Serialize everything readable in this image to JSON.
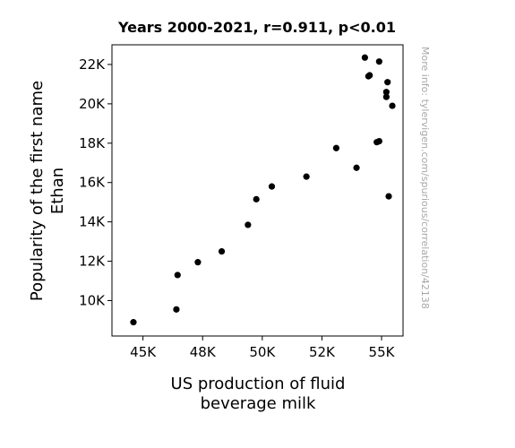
{
  "chart_data": {
    "type": "scatter",
    "title": "Years 2000-2021, r=0.911, p<0.01",
    "xlabel": [
      "US production of fluid",
      "beverage milk"
    ],
    "ylabel": [
      "Popularity of the first name",
      "Ethan"
    ],
    "xlim": [
      43700,
      55900
    ],
    "ylim": [
      8200,
      23000
    ],
    "x_ticks": [
      {
        "value": 45000,
        "label": "45K"
      },
      {
        "value": 47500,
        "label": "48K"
      },
      {
        "value": 50000,
        "label": "50K"
      },
      {
        "value": 52500,
        "label": "52K"
      },
      {
        "value": 55000,
        "label": "55K"
      }
    ],
    "y_ticks": [
      {
        "value": 10000,
        "label": "10K"
      },
      {
        "value": 12000,
        "label": "12K"
      },
      {
        "value": 14000,
        "label": "14K"
      },
      {
        "value": 16000,
        "label": "16K"
      },
      {
        "value": 18000,
        "label": "18K"
      },
      {
        "value": 20000,
        "label": "20K"
      },
      {
        "value": 22000,
        "label": "22K"
      }
    ],
    "points": [
      {
        "x": 44600,
        "y": 8900
      },
      {
        "x": 46400,
        "y": 9550
      },
      {
        "x": 46450,
        "y": 11300
      },
      {
        "x": 47300,
        "y": 11950
      },
      {
        "x": 48300,
        "y": 12500
      },
      {
        "x": 49400,
        "y": 13850
      },
      {
        "x": 49750,
        "y": 15150
      },
      {
        "x": 50400,
        "y": 15800
      },
      {
        "x": 51850,
        "y": 16300
      },
      {
        "x": 53100,
        "y": 17750
      },
      {
        "x": 53950,
        "y": 16750
      },
      {
        "x": 54300,
        "y": 22350
      },
      {
        "x": 54450,
        "y": 21400
      },
      {
        "x": 54500,
        "y": 21450
      },
      {
        "x": 54800,
        "y": 18050
      },
      {
        "x": 54900,
        "y": 18100
      },
      {
        "x": 54900,
        "y": 22150
      },
      {
        "x": 55250,
        "y": 21100
      },
      {
        "x": 55200,
        "y": 20600
      },
      {
        "x": 55200,
        "y": 20350
      },
      {
        "x": 55300,
        "y": 15300
      },
      {
        "x": 55450,
        "y": 19900
      }
    ],
    "marker_color": "#000000",
    "grid": false,
    "legend": "none"
  },
  "side_note": "More info: tylervigen.com/spurious/correlation/42138"
}
